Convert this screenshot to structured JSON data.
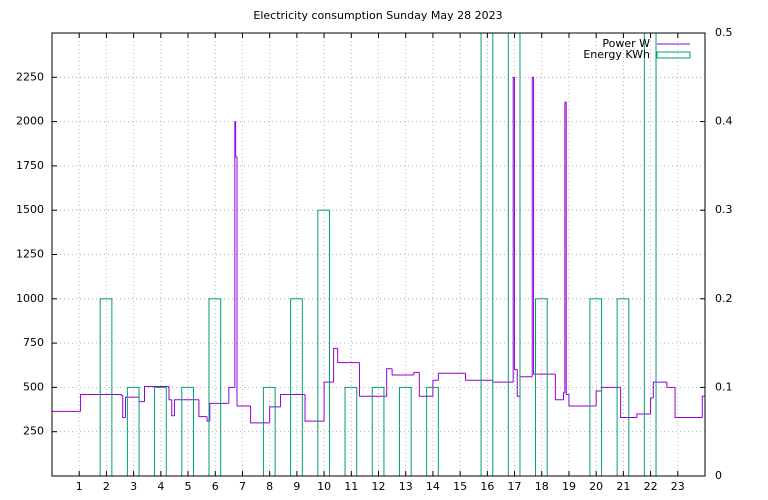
{
  "chart_data": {
    "type": "line",
    "title": "Electricity consumption Sunday May 28 2023",
    "xlim": [
      0,
      24
    ],
    "xticks": [
      1,
      2,
      3,
      4,
      5,
      6,
      7,
      8,
      9,
      10,
      11,
      12,
      13,
      14,
      15,
      16,
      17,
      18,
      19,
      20,
      21,
      22,
      23
    ],
    "ylim": [
      0,
      2500
    ],
    "yticks": [
      250,
      500,
      750,
      1000,
      1250,
      1500,
      1750,
      2000,
      2250
    ],
    "y2lim": [
      0,
      0.5
    ],
    "y2ticks": [
      0,
      0.1,
      0.2,
      0.3,
      0.4,
      0.5
    ],
    "grid": true,
    "legend": "top-right",
    "series": [
      {
        "name": "Power W",
        "color": "#9400d3",
        "style": "steps",
        "x": [
          0,
          1.05,
          2.55,
          2.6,
          2.7,
          3.2,
          3.4,
          4.3,
          4.4,
          4.5,
          5.4,
          5.7,
          5.8,
          6.5,
          6.72,
          6.75,
          6.8,
          7.3,
          8,
          8.4,
          9.3,
          10,
          10.35,
          10.5,
          11.3,
          12.3,
          12.5,
          13.3,
          13.5,
          14,
          14.2,
          15.2,
          16.2,
          16.95,
          17,
          17.1,
          17.2,
          17.65,
          17.7,
          18.5,
          18.8,
          18.85,
          18.9,
          19,
          20,
          20.2,
          20.9,
          21.5,
          22,
          22.1,
          22.6,
          22.9,
          23.9
        ],
        "values": [
          365,
          460,
          455,
          330,
          445,
          420,
          505,
          430,
          340,
          430,
          335,
          310,
          410,
          500,
          2000,
          1800,
          395,
          300,
          390,
          460,
          310,
          530,
          720,
          640,
          450,
          605,
          570,
          585,
          450,
          540,
          580,
          540,
          530,
          2250,
          600,
          450,
          560,
          2250,
          575,
          430,
          470,
          2110,
          460,
          395,
          480,
          500,
          330,
          350,
          440,
          530,
          500,
          330,
          450
        ]
      },
      {
        "name": "Energy KWh",
        "color": "#009e73",
        "style": "boxes",
        "axis": "y2",
        "x": [
          1,
          2,
          3,
          4,
          5,
          6,
          7,
          8,
          9,
          10,
          11,
          12,
          13,
          14,
          15,
          16,
          17,
          18,
          19,
          20,
          21,
          22,
          23
        ],
        "values": [
          0,
          0.2,
          0.1,
          0.1,
          0.1,
          0.2,
          0,
          0.1,
          0.2,
          0.3,
          0.1,
          0.1,
          0.1,
          0.1,
          0,
          0.55,
          0.55,
          0.2,
          0,
          0.2,
          0.2,
          0.55,
          0
        ]
      }
    ]
  }
}
